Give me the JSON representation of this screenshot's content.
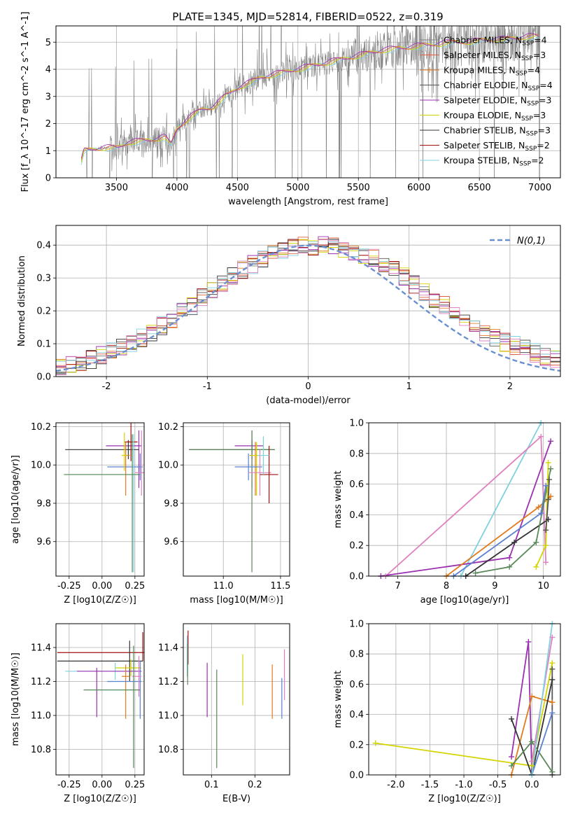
{
  "title": "PLATE=1345, MJD=52814, FIBERID=0522, z=0.319",
  "colors": {
    "chabrier_miles": "#7f7f7f",
    "salpeter_miles": "#e06040",
    "kroupa_miles": "#e07b20",
    "chabrier_elodie": "#555555",
    "salpeter_elodie": "#9b30b0",
    "kroupa_elodie": "#d4d400",
    "chabrier_stelib": "#333333",
    "salpeter_stelib": "#a01010",
    "kroupa_stelib": "#80d0e0",
    "normal_curve": "#6a8fd0",
    "steel": "#5a80d0",
    "pink": "#e080c0",
    "green": "#5a8a5a",
    "grid": "#b0b0b0"
  },
  "chart_data": [
    {
      "id": "spectrum",
      "type": "line",
      "xlabel": "wavelength [Angstrom, rest frame]",
      "ylabel": "Flux [f_λ 10^-17 erg cm^-2 s^-1 A^-1]",
      "xlim": [
        3000,
        7170
      ],
      "ylim": [
        0,
        5.6
      ],
      "xticks": [
        3500,
        4000,
        4500,
        5000,
        5500,
        6000,
        6500,
        7000
      ],
      "yticks": [
        0,
        1,
        2,
        3,
        4,
        5
      ],
      "legend": {
        "position": "top-right",
        "entries": [
          {
            "label": "Chabrier MILES, N_SSP=4",
            "color": "chabrier_miles",
            "marker": "+"
          },
          {
            "label": "Salpeter MILES, N_SSP=3",
            "color": "salpeter_miles",
            "marker": "+"
          },
          {
            "label": "Kroupa MILES, N_SSP=4",
            "color": "kroupa_miles",
            "marker": "+"
          },
          {
            "label": "Chabrier ELODIE, N_SSP=4",
            "color": "chabrier_elodie",
            "marker": ""
          },
          {
            "label": "Salpeter ELODIE, N_SSP=3",
            "color": "salpeter_elodie",
            "marker": ""
          },
          {
            "label": "Kroupa ELODIE, N_SSP=3",
            "color": "kroupa_elodie",
            "marker": ""
          },
          {
            "label": "Chabrier STELIB, N_SSP=3",
            "color": "chabrier_stelib",
            "marker": ""
          },
          {
            "label": "Salpeter STELIB, N_SSP=2",
            "color": "salpeter_stelib",
            "marker": ""
          },
          {
            "label": "Kroupa STELIB, N_SSP=2",
            "color": "kroupa_stelib",
            "marker": ""
          }
        ]
      },
      "continuum": [
        [
          3210,
          0.6
        ],
        [
          3230,
          1.0
        ],
        [
          3300,
          1.05
        ],
        [
          3400,
          1.1
        ],
        [
          3500,
          1.1
        ],
        [
          3600,
          1.3
        ],
        [
          3700,
          1.35
        ],
        [
          3800,
          1.4
        ],
        [
          3900,
          1.5
        ],
        [
          3950,
          1.2
        ],
        [
          4000,
          1.8
        ],
        [
          4100,
          2.2
        ],
        [
          4200,
          2.5
        ],
        [
          4300,
          2.6
        ],
        [
          4400,
          3.0
        ],
        [
          4500,
          3.3
        ],
        [
          4600,
          3.5
        ],
        [
          4700,
          3.7
        ],
        [
          4800,
          3.8
        ],
        [
          4900,
          3.9
        ],
        [
          5000,
          4.0
        ],
        [
          5100,
          4.1
        ],
        [
          5200,
          4.2
        ],
        [
          5300,
          4.3
        ],
        [
          5400,
          4.4
        ],
        [
          5500,
          4.5
        ],
        [
          5600,
          4.6
        ],
        [
          5700,
          4.7
        ],
        [
          5800,
          4.75
        ],
        [
          5900,
          4.8
        ],
        [
          6000,
          4.85
        ],
        [
          6100,
          4.9
        ],
        [
          6200,
          4.95
        ],
        [
          6300,
          5.0
        ],
        [
          6400,
          5.0
        ],
        [
          6500,
          5.05
        ],
        [
          6600,
          5.1
        ],
        [
          6700,
          5.1
        ],
        [
          6800,
          5.15
        ],
        [
          6900,
          5.2
        ],
        [
          7000,
          5.2
        ]
      ]
    },
    {
      "id": "residual_hist",
      "type": "line",
      "xlabel": "(data-model)/error",
      "ylabel": "Normed distribution",
      "xlim": [
        -2.5,
        2.5
      ],
      "ylim": [
        0,
        0.46
      ],
      "xticks": [
        -2,
        -1,
        0,
        1,
        2
      ],
      "yticks": [
        0.0,
        0.1,
        0.2,
        0.3,
        0.4
      ],
      "legend": {
        "position": "top-right",
        "entries": [
          {
            "label": "N(0,1)",
            "color": "normal_curve",
            "style": "dashed"
          }
        ]
      }
    },
    {
      "id": "age_vs_Z",
      "type": "scatter",
      "xlabel": "Z [log10(Z/Z☉)]",
      "ylabel": "age [log10(age/yr)]",
      "xlim": [
        -0.35,
        0.32
      ],
      "ylim": [
        9.42,
        10.22
      ],
      "xticks": [
        -0.25,
        0.0,
        0.25
      ],
      "yticks": [
        9.6,
        9.8,
        10.0,
        10.2
      ],
      "points": [
        {
          "x": 0.28,
          "y": 10.1,
          "xerr": [
            0.25,
            0.02
          ],
          "yerr": [
            0.22,
            0.08
          ],
          "color": "salpeter_elodie"
        },
        {
          "x": 0.2,
          "y": 10.08,
          "xerr": [
            0.48,
            0.08
          ],
          "yerr": [
            0.05,
            0.05
          ],
          "color": "chabrier_stelib"
        },
        {
          "x": 0.22,
          "y": 10.12,
          "xerr": [
            0.05,
            0.05
          ],
          "yerr": [
            0.1,
            0.1
          ],
          "color": "salpeter_stelib"
        },
        {
          "x": 0.18,
          "y": 10.05,
          "xerr": [
            0.03,
            0.03
          ],
          "yerr": [
            0.21,
            0.07
          ],
          "color": "kroupa_miles"
        },
        {
          "x": 0.29,
          "y": 9.99,
          "xerr": [
            0.25,
            0.02
          ],
          "yerr": [
            0.07,
            0.07
          ],
          "color": "steel"
        },
        {
          "x": 0.3,
          "y": 9.96,
          "xerr": [
            0.05,
            0.02
          ],
          "yerr": [
            0.12,
            0.22
          ],
          "color": "pink"
        },
        {
          "x": 0.24,
          "y": 9.95,
          "xerr": [
            0.52,
            0.06
          ],
          "yerr": [
            0.51,
            0.21
          ],
          "color": "kroupa_stelib"
        },
        {
          "x": 0.23,
          "y": 9.95,
          "xerr": [
            0.52,
            0.06
          ],
          "yerr": [
            0.51,
            0.21
          ],
          "color": "green"
        },
        {
          "x": 0.17,
          "y": 10.05,
          "xerr": [
            0.02,
            0.02
          ],
          "yerr": [
            0.08,
            0.12
          ],
          "color": "kroupa_elodie"
        }
      ]
    },
    {
      "id": "age_vs_mass",
      "type": "scatter",
      "xlabel": "mass [log10(M/M☉)]",
      "ylabel": "",
      "xlim": [
        10.65,
        11.58
      ],
      "ylim": [
        9.42,
        10.22
      ],
      "xticks": [
        11.0,
        11.5
      ],
      "yticks": [
        9.6,
        9.8,
        10.0,
        10.2
      ],
      "points": [
        {
          "x": 11.25,
          "y": 10.1,
          "xerr": [
            0.15,
            0.1
          ],
          "yerr": [
            0.22,
            0.08
          ],
          "color": "salpeter_elodie"
        },
        {
          "x": 11.25,
          "y": 10.08,
          "xerr": [
            0.55,
            0.2
          ],
          "yerr": [
            0.05,
            0.05
          ],
          "color": "chabrier_stelib"
        },
        {
          "x": 11.25,
          "y": 10.08,
          "xerr": [
            0.55,
            0.2
          ],
          "yerr": [
            0.64,
            0.1
          ],
          "color": "green"
        },
        {
          "x": 11.28,
          "y": 10.05,
          "xerr": [
            0.05,
            0.05
          ],
          "yerr": [
            0.21,
            0.07
          ],
          "color": "kroupa_miles"
        },
        {
          "x": 11.29,
          "y": 10.05,
          "xerr": [
            0.05,
            0.05
          ],
          "yerr": [
            0.21,
            0.07
          ],
          "color": "kroupa_elodie"
        },
        {
          "x": 11.22,
          "y": 9.99,
          "xerr": [
            0.12,
            0.12
          ],
          "yerr": [
            0.07,
            0.07
          ],
          "color": "steel"
        },
        {
          "x": 11.32,
          "y": 9.96,
          "xerr": [
            0.1,
            0.1
          ],
          "yerr": [
            0.12,
            0.12
          ],
          "color": "pink"
        },
        {
          "x": 11.4,
          "y": 9.95,
          "xerr": [
            0.08,
            0.08
          ],
          "yerr": [
            0.15,
            0.15
          ],
          "color": "salpeter_stelib"
        },
        {
          "x": 11.35,
          "y": 10.05,
          "xerr": [
            0.05,
            0.05
          ],
          "yerr": [
            0.1,
            0.1
          ],
          "color": "kroupa_stelib"
        }
      ]
    },
    {
      "id": "weight_vs_age",
      "type": "line",
      "xlabel": "age [log10(age/yr)]",
      "ylabel": "mass weight",
      "xlim": [
        6.4,
        10.35
      ],
      "ylim": [
        0,
        1
      ],
      "xticks": [
        7,
        8,
        9,
        10
      ],
      "yticks": [
        0.0,
        0.2,
        0.4,
        0.6,
        0.8,
        1.0
      ],
      "series": [
        {
          "color": "kroupa_stelib",
          "x": [
            8.3,
            9.95
          ],
          "y": [
            0,
            1.0
          ]
        },
        {
          "color": "pink",
          "x": [
            6.75,
            9.95,
            10.05
          ],
          "y": [
            0,
            0.91,
            0.09
          ]
        },
        {
          "color": "salpeter_elodie",
          "x": [
            6.65,
            9.3,
            10.15
          ],
          "y": [
            0,
            0.12,
            0.88
          ]
        },
        {
          "color": "kroupa_miles",
          "x": [
            8.0,
            9.9,
            10.15
          ],
          "y": [
            0,
            0.45,
            0.52
          ]
        },
        {
          "color": "steel",
          "x": [
            8.15,
            9.95,
            10.05
          ],
          "y": [
            0,
            0.41,
            0.59
          ]
        },
        {
          "color": "chabrier_stelib",
          "x": [
            8.4,
            9.4,
            10.1
          ],
          "y": [
            0,
            0.22,
            0.37
          ]
        },
        {
          "color": "green",
          "x": [
            8.6,
            9.3,
            9.85,
            10.15
          ],
          "y": [
            0.02,
            0.06,
            0.22,
            0.7
          ]
        },
        {
          "color": "kroupa_elodie",
          "x": [
            9.85,
            10.05,
            10.1
          ],
          "y": [
            0.06,
            0.2,
            0.74
          ]
        },
        {
          "color": "chabrier_elodie",
          "x": [
            10.05,
            10.1,
            10.12
          ],
          "y": [
            0.3,
            0.5,
            0.63
          ]
        }
      ]
    },
    {
      "id": "mass_vs_Z",
      "type": "scatter",
      "xlabel": "Z [log10(Z/Z☉)]",
      "ylabel": "mass [log10(M/M☉)]",
      "xlim": [
        -0.35,
        0.32
      ],
      "ylim": [
        10.65,
        11.54
      ],
      "xticks": [
        -0.25,
        0.0,
        0.25
      ],
      "yticks": [
        10.8,
        11.0,
        11.2,
        11.4
      ],
      "points": [
        {
          "x": 0.31,
          "y": 11.37,
          "xerr": [
            0.65,
            0.01
          ],
          "yerr": [
            0.05,
            0.12
          ],
          "color": "salpeter_stelib"
        },
        {
          "x": 0.21,
          "y": 11.32,
          "xerr": [
            0.55,
            0.1
          ],
          "yerr": [
            0.12,
            0.12
          ],
          "color": "chabrier_stelib"
        },
        {
          "x": 0.22,
          "y": 11.28,
          "xerr": [
            0.12,
            0.08
          ],
          "yerr": [
            0.05,
            0.05
          ],
          "color": "kroupa_elodie"
        },
        {
          "x": 0.1,
          "y": 11.26,
          "xerr": [
            0.38,
            0.2
          ],
          "yerr": [
            0.05,
            0.05
          ],
          "color": "kroupa_stelib"
        },
        {
          "x": -0.04,
          "y": 11.26,
          "xerr": [
            0.15,
            0.34
          ],
          "yerr": [
            0.27,
            0.02
          ],
          "color": "salpeter_elodie"
        },
        {
          "x": 0.18,
          "y": 11.23,
          "xerr": [
            0.03,
            0.03
          ],
          "yerr": [
            0.25,
            0.07
          ],
          "color": "kroupa_miles"
        },
        {
          "x": 0.29,
          "y": 11.2,
          "xerr": [
            0.25,
            0.01
          ],
          "yerr": [
            0.22,
            0.12
          ],
          "color": "steel"
        },
        {
          "x": 0.28,
          "y": 11.23,
          "xerr": [
            0.05,
            0.02
          ],
          "yerr": [
            0.12,
            0.12
          ],
          "color": "pink"
        },
        {
          "x": 0.24,
          "y": 11.15,
          "xerr": [
            0.38,
            0.05
          ],
          "yerr": [
            0.46,
            0.26
          ],
          "color": "green"
        }
      ]
    },
    {
      "id": "mass_vs_ebv",
      "type": "scatter",
      "xlabel": "E(B-V)",
      "ylabel": "",
      "xlim": [
        0.035,
        0.28
      ],
      "ylim": [
        10.65,
        11.54
      ],
      "xticks": [
        0.1,
        0.2
      ],
      "yticks": [
        10.8,
        11.0,
        11.2,
        11.4
      ],
      "points": [
        {
          "x": 0.044,
          "y": 11.35,
          "yerr": [
            0.12,
            0.12
          ],
          "color": "kroupa_stelib"
        },
        {
          "x": 0.046,
          "y": 11.4,
          "yerr": [
            0.1,
            0.1
          ],
          "color": "salpeter_stelib"
        },
        {
          "x": 0.045,
          "y": 11.3,
          "yerr": [
            0.12,
            0.12
          ],
          "color": "green"
        },
        {
          "x": 0.09,
          "y": 11.15,
          "yerr": [
            0.16,
            0.16
          ],
          "color": "salpeter_elodie"
        },
        {
          "x": 0.112,
          "y": 10.98,
          "yerr": [
            0.29,
            0.29
          ],
          "color": "green"
        },
        {
          "x": 0.172,
          "y": 11.21,
          "yerr": [
            0.15,
            0.15
          ],
          "color": "kroupa_elodie"
        },
        {
          "x": 0.24,
          "y": 11.14,
          "yerr": [
            0.16,
            0.16
          ],
          "color": "kroupa_miles"
        },
        {
          "x": 0.262,
          "y": 11.1,
          "yerr": [
            0.12,
            0.12
          ],
          "color": "steel"
        },
        {
          "x": 0.268,
          "y": 11.24,
          "yerr": [
            0.15,
            0.15
          ],
          "color": "pink"
        }
      ]
    },
    {
      "id": "weight_vs_Z",
      "type": "line",
      "xlabel": "Z [log10(Z/Z☉)]",
      "ylabel": "mass weight",
      "xlim": [
        -2.4,
        0.42
      ],
      "ylim": [
        0,
        1
      ],
      "xticks": [
        -2.0,
        -1.5,
        -1.0,
        -0.5,
        0.0
      ],
      "yticks": [
        0.0,
        0.2,
        0.4,
        0.6,
        0.8,
        1.0
      ],
      "series": [
        {
          "color": "kroupa_elodie",
          "x": [
            -2.3,
            0.0,
            0.3
          ],
          "y": [
            0.21,
            0.06,
            0.74
          ]
        },
        {
          "color": "salpeter_elodie",
          "x": [
            -0.3,
            -0.05,
            0.0
          ],
          "y": [
            0.12,
            0.88,
            0.0
          ]
        },
        {
          "color": "kroupa_miles",
          "x": [
            -0.3,
            0.0,
            0.3
          ],
          "y": [
            0.0,
            0.52,
            0.48
          ]
        },
        {
          "color": "chabrier_stelib",
          "x": [
            -0.3,
            0.0,
            0.3
          ],
          "y": [
            0.37,
            0.0,
            0.63
          ]
        },
        {
          "color": "green",
          "x": [
            -0.3,
            0.0,
            0.3
          ],
          "y": [
            0.06,
            0.22,
            0.02
          ]
        },
        {
          "color": "steel",
          "x": [
            0.0,
            0.3
          ],
          "y": [
            0.0,
            0.41
          ]
        },
        {
          "color": "pink",
          "x": [
            0.0,
            0.3
          ],
          "y": [
            0.09,
            0.91
          ]
        },
        {
          "color": "kroupa_stelib",
          "x": [
            0.0,
            0.3
          ],
          "y": [
            0.0,
            1.0
          ]
        },
        {
          "color": "chabrier_elodie",
          "x": [
            0.3,
            0.3
          ],
          "y": [
            0.0,
            0.7
          ]
        }
      ]
    }
  ]
}
